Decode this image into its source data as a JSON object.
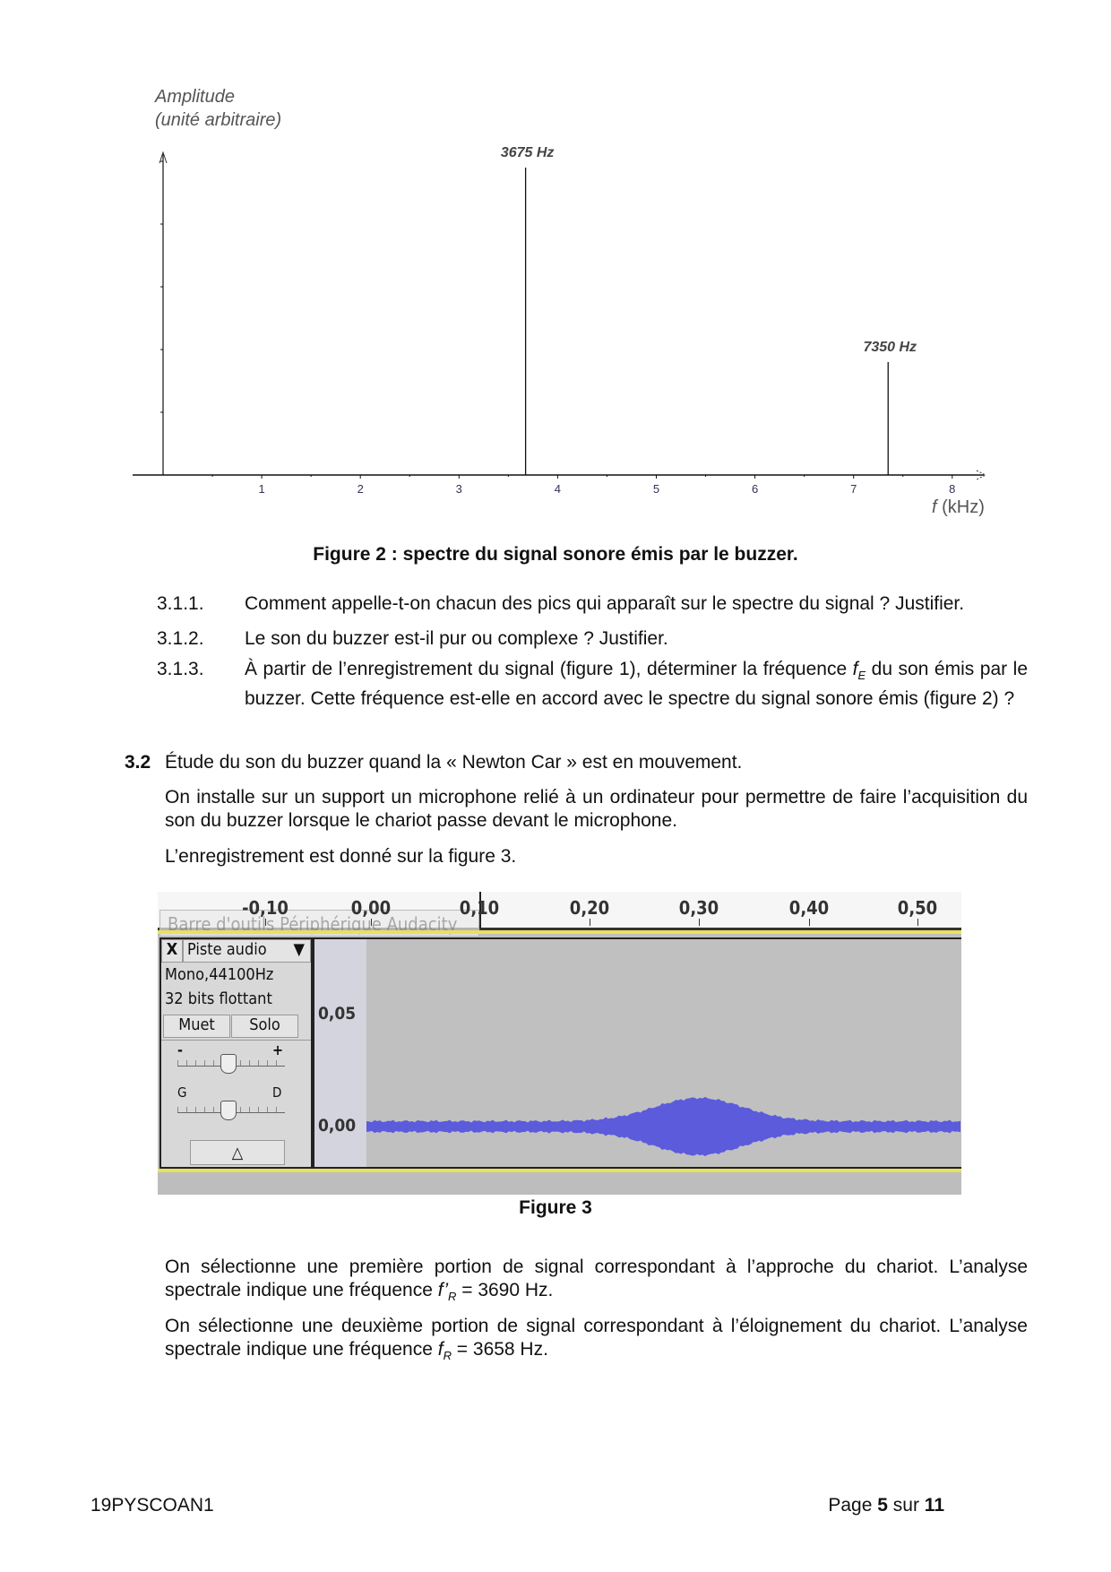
{
  "figure2": {
    "chart_data": {
      "type": "bar",
      "ylabel_line1": "Amplitude",
      "ylabel_line2": "(unité arbitraire)",
      "xlabel_italic": "f",
      "xlabel_unit": " (kHz)",
      "xticks": [
        "1",
        "2",
        "3",
        "4",
        "5",
        "6",
        "7",
        "8"
      ],
      "xlim": [
        0,
        8.3
      ],
      "ylim": [
        0,
        5.2
      ],
      "y_tick_labels_shown": false,
      "peaks": [
        {
          "frequency_khz": 3.675,
          "amplitude": 4.9,
          "label": "3675 Hz"
        },
        {
          "frequency_khz": 7.35,
          "amplitude": 1.8,
          "label": "7350 Hz"
        }
      ]
    },
    "caption": "Figure 2 : spectre du signal sonore émis par le buzzer."
  },
  "questions": [
    {
      "num": "3.1.1.",
      "text": "Comment appelle-t-on chacun des pics qui apparaît sur le spectre du signal ? Justifier."
    },
    {
      "num": "3.1.2.",
      "text": "Le son du buzzer est-il pur ou complexe ? Justifier."
    },
    {
      "num": "3.1.3.",
      "text_before": "À partir de l’enregistrement du signal (figure 1), déterminer la fréquence ",
      "var": "f",
      "sub": "E",
      "text_after": " du son émis par le buzzer. Cette fréquence est-elle en accord avec le spectre du signal sonore émis (figure 2) ?"
    }
  ],
  "section32": {
    "num": "3.2",
    "title": "Étude du son du buzzer quand la « Newton Car » est en mouvement.",
    "p1": "On installe sur un support un microphone relié à un ordinateur pour permettre de faire l’acquisition du son du buzzer lorsque le chariot passe devant le microphone.",
    "p2": "L’enregistrement est donné sur la figure 3."
  },
  "figure3": {
    "ruler_labels": [
      "-0,10",
      "0,00",
      "0,10",
      "0,20",
      "0,30",
      "0,40",
      "0,50"
    ],
    "tooltip": "Barre d'outils Périphérique Audacity",
    "track_close": "X",
    "track_name": "Piste audio",
    "track_format": "Mono,44100Hz",
    "track_bits": "32 bits flottant",
    "mute": "Muet",
    "solo": "Solo",
    "gain_minus": "-",
    "gain_plus": "+",
    "pan_left": "G",
    "pan_right": "D",
    "collapse": "△",
    "scale_labels": [
      "0,05",
      "0,00"
    ],
    "wave_color": "#5b5bdc",
    "caption": "Figure 3"
  },
  "para3": {
    "before": "On sélectionne une première portion de signal correspondant à l’approche du chariot. L’analyse spectrale indique une fréquence ",
    "var": "f’",
    "sub": "R",
    "after": " = 3690 Hz."
  },
  "para4": {
    "before": "On sélectionne une deuxième portion de signal correspondant à l’éloignement du chariot. L’analyse spectrale indique une fréquence ",
    "var": "f",
    "sub": "R",
    "after": " = 3658 Hz."
  },
  "footer": {
    "code": "19PYSCOAN1",
    "page_prefix": "Page ",
    "page": "5",
    "sur": " sur ",
    "total": "11"
  }
}
